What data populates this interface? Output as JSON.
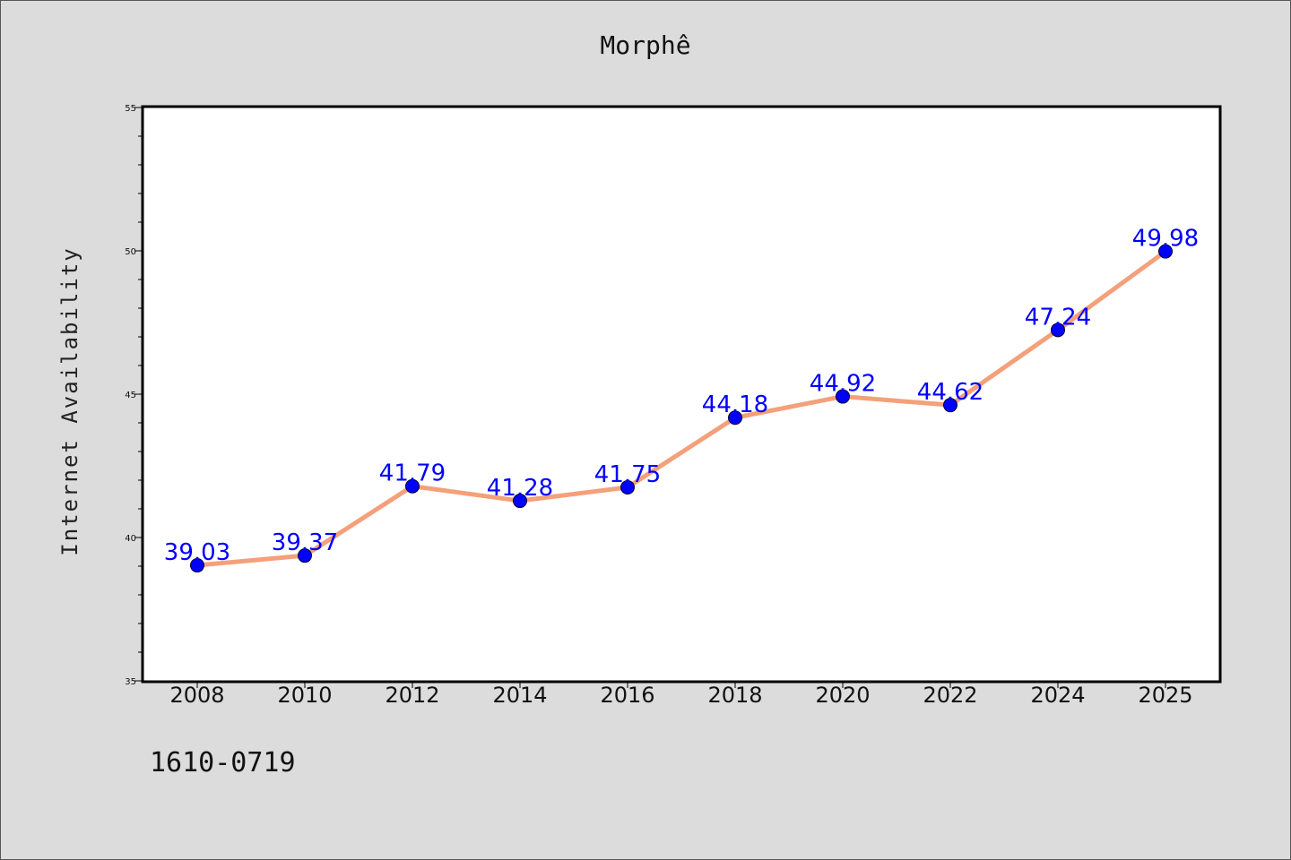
{
  "footer": {
    "code": "1610-0719"
  },
  "chart_data": {
    "type": "line",
    "title": "Morphê",
    "xlabel": "",
    "ylabel": "Internet Availability",
    "categories": [
      "2008",
      "2010",
      "2012",
      "2014",
      "2016",
      "2018",
      "2020",
      "2022",
      "2024",
      "2025"
    ],
    "series": [
      {
        "values": [
          39.03,
          39.37,
          41.79,
          41.28,
          41.75,
          44.18,
          44.92,
          44.62,
          47.24,
          49.98
        ],
        "labels": [
          "39.03",
          "39.37",
          "41.79",
          "41.28",
          "41.75",
          "44.18",
          "44.92",
          "44.62",
          "47.24",
          "49.98"
        ],
        "line_color": "#f4a07a",
        "marker_color": "#0000ff"
      }
    ],
    "ylim": [
      35,
      55
    ],
    "y_ticks": [
      "35",
      "40",
      "45",
      "50",
      "55"
    ],
    "grid": false,
    "legend": "none"
  }
}
